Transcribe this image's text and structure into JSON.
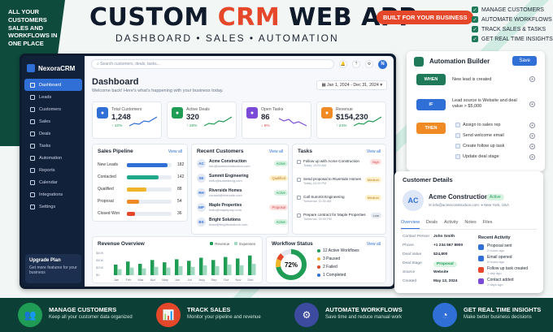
{
  "hero": {
    "left_tag": "ALL YOUR CUSTOMERS SALES AND WORKFLOWS IN ONE PLACE",
    "title_part1": "CUSTOM ",
    "title_part2": "CRM",
    "title_part3": " WEB APP",
    "subtitle": "DASHBOARD • SALES • AUTOMATION",
    "badge": "BUILT FOR YOUR BUSINESS",
    "checklist": [
      "MANAGE CUSTOMERS",
      "AUTOMATE WORKFLOWS",
      "TRACK SALES & TASKS",
      "GET REAL TIME INSIGHTS"
    ]
  },
  "app": {
    "brand": "NexoraCRM",
    "nav": [
      "Dashboard",
      "Leads",
      "Customers",
      "Sales",
      "Deals",
      "Tasks",
      "Automation",
      "Reports",
      "Calendar",
      "Integrations",
      "Settings"
    ],
    "upgrade": {
      "title": "Upgrade Plan",
      "desc": "Get more features for your business"
    },
    "search_placeholder": "Search customers, deals, tasks...",
    "notif_count": "3",
    "avatar": "N",
    "title": "Dashboard",
    "subtitle": "Welcome back! Here's what's happening with your business today.",
    "date_range": "Jan 1, 2024 - Dec 31, 2024",
    "stats": [
      {
        "label": "Total Customers",
        "value": "1,248",
        "change": "↑ 12%",
        "color": "#2f6fd6",
        "spark": "#2f6fd6",
        "down": false
      },
      {
        "label": "Active Deals",
        "value": "320",
        "change": "↑ 18%",
        "color": "#1f9d55",
        "spark": "#1f9d55",
        "down": false
      },
      {
        "label": "Open Tasks",
        "value": "86",
        "change": "↓ 6%",
        "color": "#7b4ad6",
        "spark": "#7b4ad6",
        "down": true
      },
      {
        "label": "Revenue",
        "value": "$154,230",
        "change": "↑ 24%",
        "color": "#f08a24",
        "spark": "#1f9d55",
        "down": false
      }
    ],
    "pipeline": {
      "title": "Sales Pipeline",
      "view_all": "View all",
      "rows": [
        {
          "label": "New Leads",
          "value": 182,
          "color": "#2f6fd6"
        },
        {
          "label": "Contacted",
          "value": 142,
          "color": "#1fa98a"
        },
        {
          "label": "Qualified",
          "value": 88,
          "color": "#f0b429"
        },
        {
          "label": "Proposal",
          "value": 54,
          "color": "#f08a24"
        },
        {
          "label": "Closed Won",
          "value": 36,
          "color": "#e5472a"
        }
      ]
    },
    "recent_customers": {
      "title": "Recent Customers",
      "view_all": "View all",
      "rows": [
        {
          "init": "AC",
          "name": "Acme Construction",
          "email": "info@acmeconstruction.com",
          "status": "Active",
          "bg": "#d9f3e3",
          "fg": "#1f9d55"
        },
        {
          "init": "SE",
          "name": "Summit Engineering",
          "email": "hello@summiteng.com",
          "status": "Qualified",
          "bg": "#fff1cc",
          "fg": "#b7791f"
        },
        {
          "init": "RH",
          "name": "Riverside Homes",
          "email": "contact@riverside.com",
          "status": "Active",
          "bg": "#d9f3e3",
          "fg": "#1f9d55"
        },
        {
          "init": "MP",
          "name": "Maple Properties",
          "email": "hello@mapleprop.com",
          "status": "Proposal",
          "bg": "#fde2e1",
          "fg": "#d64545"
        },
        {
          "init": "BS",
          "name": "Bright Solutions",
          "email": "team@brightsolutions.com",
          "status": "Active",
          "bg": "#d9f3e3",
          "fg": "#1f9d55"
        }
      ]
    },
    "tasks": {
      "title": "Tasks",
      "view_all": "View all",
      "rows": [
        {
          "text": "Follow up with Acme Construction",
          "date": "Today, 10:00 AM",
          "priority": "High",
          "bg": "#fde2e1",
          "fg": "#d64545"
        },
        {
          "text": "Send proposal to Riverside Homes",
          "date": "Today, 02:00 PM",
          "priority": "Medium",
          "bg": "#fff1cc",
          "fg": "#b7791f"
        },
        {
          "text": "Call Summit Engineering",
          "date": "Tomorrow, 11:30 AM",
          "priority": "Medium",
          "bg": "#fff1cc",
          "fg": "#b7791f"
        },
        {
          "text": "Prepare contract for Maple Properties",
          "date": "Tomorrow, 03:00 PM",
          "priority": "Low",
          "bg": "#e5ebf3",
          "fg": "#555"
        }
      ]
    },
    "revenue": {
      "title": "Revenue Overview",
      "legend_revenue": "Revenue",
      "legend_expenses": "Expenses",
      "y_ticks": [
        "$60K",
        "$40K",
        "$20K",
        "$0"
      ]
    },
    "workflow": {
      "title": "Workflow Status",
      "view_all": "View all",
      "percent": "72%",
      "items": [
        {
          "text": "12 Active Workflows",
          "color": "#1f9d55"
        },
        {
          "text": "3 Paused",
          "color": "#f0b429"
        },
        {
          "text": "2 Failed",
          "color": "#e5472a"
        },
        {
          "text": "1 Completed",
          "color": "#2f6fd6"
        }
      ]
    }
  },
  "chart_data": {
    "type": "bar",
    "categories": [
      "Jan",
      "Feb",
      "Mar",
      "Apr",
      "May",
      "Jun",
      "Jul",
      "Aug",
      "Sep",
      "Oct",
      "Nov",
      "Dec"
    ],
    "series": [
      {
        "name": "Revenue",
        "values": [
          28,
          36,
          30,
          40,
          34,
          42,
          38,
          46,
          40,
          48,
          44,
          52
        ]
      },
      {
        "name": "Expenses",
        "values": [
          16,
          20,
          18,
          22,
          20,
          24,
          22,
          26,
          24,
          28,
          26,
          30
        ]
      }
    ],
    "title": "Revenue Overview",
    "ylim": [
      0,
      60
    ]
  },
  "automation": {
    "title": "Automation Builder",
    "save": "Save",
    "when_label": "WHEN",
    "when_text": "New lead is created",
    "if_label": "IF",
    "if_text": "Lead source is Website and deal value > $5,000",
    "then_label": "THEN",
    "actions": [
      "Assign to sales rep",
      "Send welcome email",
      "Create follow up task",
      "Update deal stage"
    ]
  },
  "customer_details": {
    "title": "Customer Details",
    "initials": "AC",
    "name": "Acme Construction",
    "status": "Active",
    "email": "info@acmeconstruction.com",
    "location": "New York, USA",
    "tabs": [
      "Overview",
      "Deals",
      "Activity",
      "Notes",
      "Files"
    ],
    "fields": [
      {
        "k": "Contact Person",
        "v": "John Smith"
      },
      {
        "k": "Phone",
        "v": "+1 234 567 8900"
      },
      {
        "k": "Deal Value",
        "v": "$24,800"
      },
      {
        "k": "Deal Stage",
        "v": "Proposal"
      },
      {
        "k": "Source",
        "v": "Website"
      },
      {
        "k": "Created",
        "v": "May 12, 2024"
      }
    ],
    "activity_title": "Recent Activity",
    "activity": [
      {
        "t": "Proposal sent",
        "d": "2 hours ago",
        "c": "#2f6fd6"
      },
      {
        "t": "Email opened",
        "d": "5 hours ago",
        "c": "#2f6fd6"
      },
      {
        "t": "Follow up task created",
        "d": "1 day ago",
        "c": "#e5472a"
      },
      {
        "t": "Contact added",
        "d": "2 days ago",
        "c": "#7b4ad6"
      }
    ]
  },
  "footer": [
    {
      "title": "MANAGE CUSTOMERS",
      "desc": "Keep all your customer data organized",
      "color": "#1f9d55"
    },
    {
      "title": "TRACK SALES",
      "desc": "Monitor your pipeline and revenue",
      "color": "#e5472a"
    },
    {
      "title": "AUTOMATE WORKFLOWS",
      "desc": "Save time and reduce manual work",
      "color": "#3d4b9e"
    },
    {
      "title": "GET REAL TIME INSIGHTS",
      "desc": "Make better business decisions",
      "color": "#2f6fd6"
    }
  ]
}
